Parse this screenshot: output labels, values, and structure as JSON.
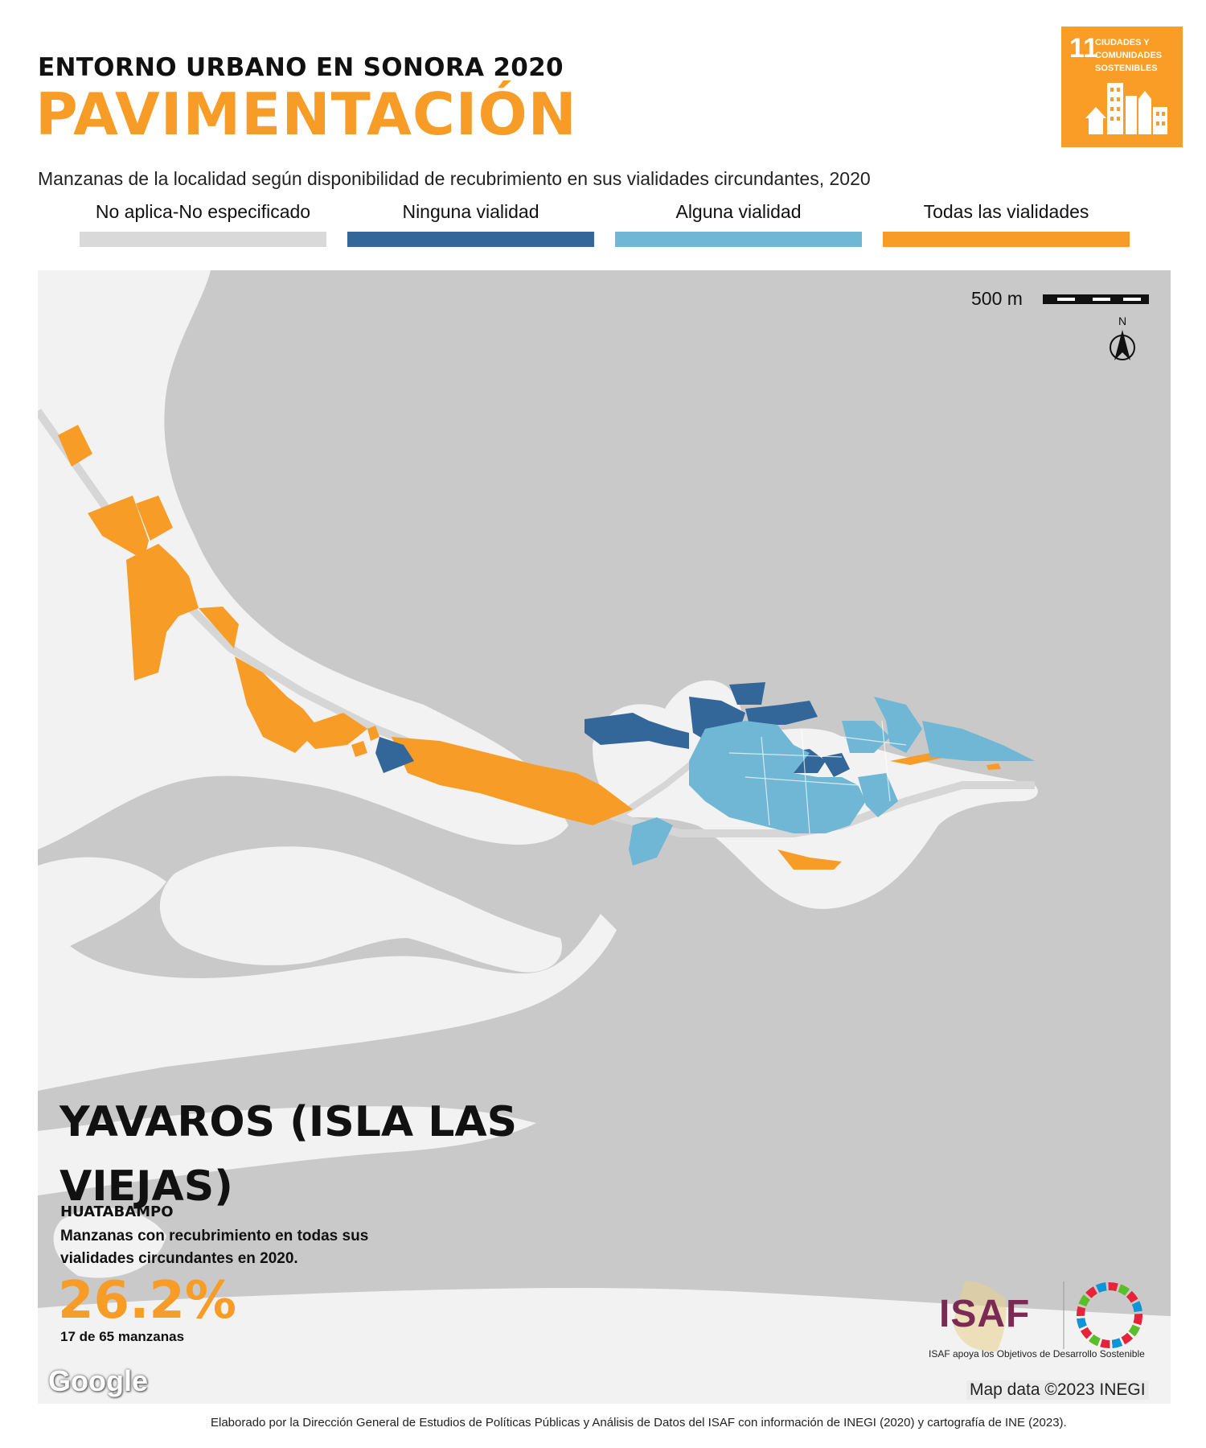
{
  "header": {
    "supertitle": "ENTORNO URBANO EN SONORA 2020",
    "title": "PAVIMENTACIÓN",
    "subtitle": "Manzanas de la localidad según disponibilidad de recubrimiento en sus vialidades circundantes, 2020"
  },
  "sdg_badge": {
    "number": "11",
    "text": "CIUDADES Y COMUNIDADES SOSTENIBLES",
    "color": "#f99d26",
    "icon": "city-buildings-icon"
  },
  "legend": [
    {
      "label": "No aplica-No especificado",
      "color": "#d9d9d9"
    },
    {
      "label": "Ninguna vialidad",
      "color": "#336699"
    },
    {
      "label": "Alguna vialidad",
      "color": "#70b7d5"
    },
    {
      "label": "Todas las vialidades",
      "color": "#f89c28"
    }
  ],
  "map": {
    "water_color": "#c9c9c9",
    "land_color": "#f2f2f2",
    "scale_label": "500 m",
    "north_label": "N",
    "attribution": "Map data ©2023 INEGI",
    "provider": "Google"
  },
  "locality": {
    "name": "YAVAROS (ISLA LAS VIEJAS)",
    "municipality": "HUATABAMPO",
    "stat_description": "Manzanas con recubrimiento en todas sus vialidades circundantes en 2020.",
    "stat_value": "26.2%",
    "stat_count": "17 de 65 manzanas"
  },
  "logos": {
    "isaf": "ISAF",
    "caption": "ISAF apoya los Objetivos de Desarrollo Sostenible"
  },
  "footer": "Elaborado por la Dirección General de Estudios de Políticas Públicas y Análisis de Datos del ISAF con información de INEGI (2020) y cartografía de INE (2023)."
}
